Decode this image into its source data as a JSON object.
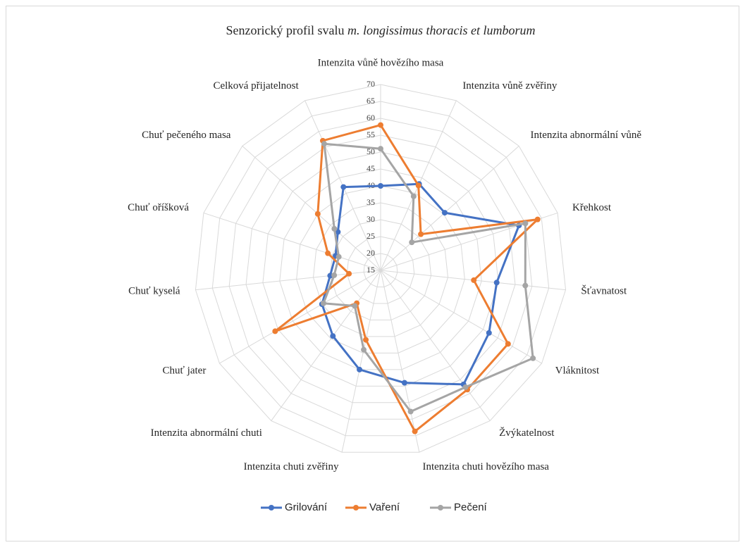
{
  "chart_data": {
    "type": "radar",
    "title": "Senzorický profil svalu",
    "title_italic": "m. longissimus thoracis et lumborum",
    "categories": [
      "Intenzita vůně hovězího masa",
      "Intenzita vůně zvěřiny",
      "Intenzita abnormální vůně",
      "Křehkost",
      "Šťavnatost",
      "Vláknitost",
      "Žvýkatelnost",
      "Intenzita chuti hovězího masa",
      "Intenzita chuti zvěřiny",
      "Intenzita abnormální chuti",
      "Chuť jater",
      "Chuť kyselá",
      "Chuť oříšková",
      "Chuť pečeného masa",
      "Celková přijatelnost"
    ],
    "series": [
      {
        "name": "Grilování",
        "color": "#4472c4",
        "values": [
          40,
          43,
          40.5,
          58,
          49.5,
          52,
          56.7,
          49,
          45,
          39,
          35,
          30,
          29,
          32,
          42
        ]
      },
      {
        "name": "Vaření",
        "color": "#ed7d31",
        "values": [
          58,
          42.5,
          31,
          63.8,
          42.7,
          58.5,
          58.6,
          63.7,
          36,
          27,
          51,
          24.4,
          31.4,
          40,
          57
        ]
      },
      {
        "name": "Pečení",
        "color": "#a5a5a5",
        "values": [
          51,
          39,
          27.4,
          60,
          58,
          67,
          57.7,
          57.7,
          39,
          28,
          34.5,
          28.8,
          28,
          33.4,
          56
        ]
      }
    ],
    "rlim": [
      15,
      70
    ],
    "rticks": [
      15,
      20,
      25,
      30,
      35,
      40,
      45,
      50,
      55,
      60,
      65,
      70
    ],
    "grid": true,
    "legend": "bottom"
  }
}
